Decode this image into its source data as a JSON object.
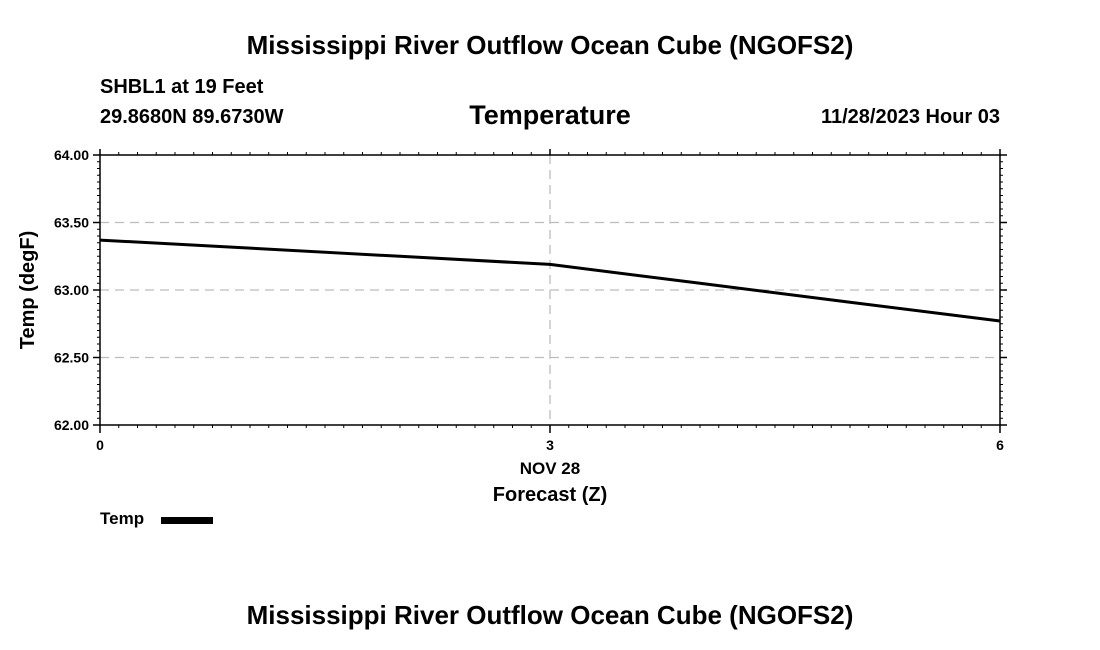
{
  "header": {
    "main_title": "Mississippi River Outflow Ocean Cube (NGOFS2)",
    "station": "SHBL1 at 19 Feet",
    "coords": "29.8680N  89.6730W",
    "chart_title": "Temperature",
    "date": "11/28/2023 Hour 03"
  },
  "footer": {
    "main_title": "Mississippi River Outflow Ocean Cube (NGOFS2)"
  },
  "colors": {
    "line": "#000000",
    "grid": "#bdbdbd"
  },
  "chart_data": {
    "type": "line",
    "title": "Temperature",
    "xlabel": "Forecast (Z)",
    "ylabel": "Temp (degF)",
    "xlim": [
      0,
      6
    ],
    "ylim": [
      62.0,
      64.0
    ],
    "x_ticks": [
      {
        "value": 0,
        "label": "0"
      },
      {
        "value": 3,
        "label": "3"
      },
      {
        "value": 6,
        "label": "6"
      }
    ],
    "x_date_label": "NOV 28",
    "y_ticks": [
      {
        "value": 62.0,
        "label": "62.00"
      },
      {
        "value": 62.5,
        "label": "62.50"
      },
      {
        "value": 63.0,
        "label": "63.00"
      },
      {
        "value": 63.5,
        "label": "63.50"
      },
      {
        "value": 64.0,
        "label": "64.00"
      }
    ],
    "grid": true,
    "series": [
      {
        "name": "Temp",
        "x": [
          0,
          1,
          2,
          3,
          4,
          5,
          6
        ],
        "values": [
          63.37,
          63.31,
          63.25,
          63.19,
          63.05,
          62.91,
          62.77
        ]
      }
    ],
    "legend": {
      "label": "Temp",
      "placement": "bottom-left"
    }
  }
}
